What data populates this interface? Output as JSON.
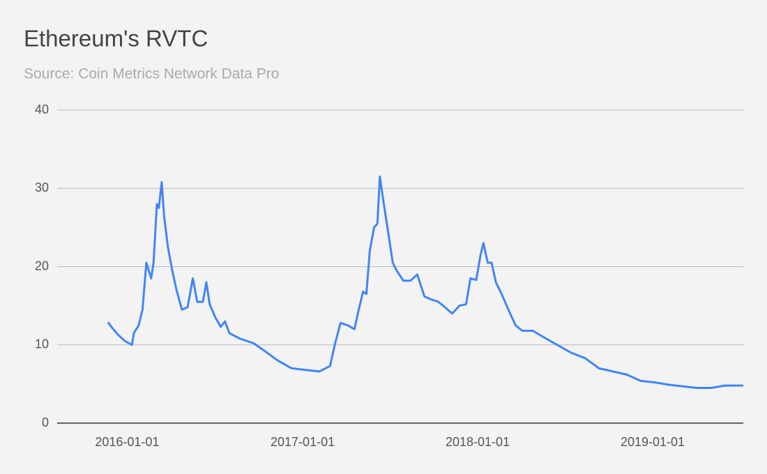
{
  "chart_data": {
    "type": "line",
    "title": "Ethereum's RVTC",
    "subtitle": "Source: Coin Metrics Network Data Pro",
    "x": [
      "2015-11-22",
      "2015-11-29",
      "2015-12-13",
      "2015-12-27",
      "2016-01-11",
      "2016-01-15",
      "2016-01-25",
      "2016-02-02",
      "2016-02-10",
      "2016-02-20",
      "2016-02-25",
      "2016-03-03",
      "2016-03-07",
      "2016-03-13",
      "2016-03-18",
      "2016-03-26",
      "2016-04-04",
      "2016-04-13",
      "2016-04-24",
      "2016-05-06",
      "2016-05-17",
      "2016-05-26",
      "2016-06-07",
      "2016-06-14",
      "2016-06-21",
      "2016-07-03",
      "2016-07-14",
      "2016-07-23",
      "2016-08-01",
      "2016-08-23",
      "2016-09-21",
      "2016-10-12",
      "2016-11-10",
      "2016-12-09",
      "2017-01-07",
      "2017-02-05",
      "2017-02-27",
      "2017-03-09",
      "2017-03-21",
      "2017-04-05",
      "2017-04-19",
      "2017-04-28",
      "2017-05-07",
      "2017-05-14",
      "2017-05-21",
      "2017-05-30",
      "2017-06-06",
      "2017-06-11",
      "2017-06-18",
      "2017-06-28",
      "2017-07-08",
      "2017-07-16",
      "2017-07-30",
      "2017-08-14",
      "2017-08-28",
      "2017-09-12",
      "2017-09-26",
      "2017-10-11",
      "2017-10-25",
      "2017-11-09",
      "2017-11-24",
      "2017-12-08",
      "2017-12-17",
      "2017-12-29",
      "2018-01-07",
      "2018-01-13",
      "2018-01-22",
      "2018-01-30",
      "2018-02-08",
      "2018-02-20",
      "2018-03-06",
      "2018-03-21",
      "2018-04-04",
      "2018-04-26",
      "2018-05-18",
      "2018-06-16",
      "2018-07-15",
      "2018-08-13",
      "2018-09-11",
      "2018-10-10",
      "2018-11-08",
      "2018-12-07",
      "2019-01-06",
      "2019-02-04",
      "2019-03-05",
      "2019-04-03",
      "2019-05-03",
      "2019-06-01",
      "2019-07-09"
    ],
    "series": [
      {
        "name": "RVTC",
        "color": "#4285f4",
        "values": [
          12.9,
          12.3,
          11.3,
          10.5,
          10.0,
          11.5,
          12.5,
          14.5,
          20.5,
          18.5,
          20.5,
          28.0,
          27.5,
          30.8,
          26.5,
          22.5,
          19.5,
          17.0,
          14.5,
          14.8,
          18.5,
          15.5,
          15.5,
          18.0,
          15.2,
          13.5,
          12.3,
          13.0,
          11.5,
          10.8,
          10.2,
          9.3,
          8.0,
          7.0,
          6.8,
          6.6,
          7.3,
          10.0,
          12.8,
          12.5,
          12.0,
          14.5,
          16.8,
          16.5,
          22.0,
          25.0,
          25.5,
          31.5,
          28.5,
          24.5,
          20.5,
          19.5,
          18.2,
          18.2,
          19.0,
          16.2,
          15.8,
          15.5,
          14.8,
          14.0,
          15.0,
          15.2,
          18.5,
          18.3,
          21.5,
          23.0,
          20.5,
          20.5,
          18.0,
          16.5,
          14.5,
          12.5,
          11.8,
          11.8,
          11.0,
          10.0,
          9.0,
          8.3,
          7.0,
          6.6,
          6.2,
          5.4,
          5.2,
          4.9,
          4.7,
          4.5,
          4.5,
          4.8,
          4.8
        ]
      }
    ],
    "xlim": [
      "2015-08-08",
      "2019-07-09"
    ],
    "xticks": [
      "2016-01-01",
      "2017-01-01",
      "2018-01-01",
      "2019-01-01"
    ],
    "ylim": [
      0,
      40
    ],
    "yticks": [
      0,
      10,
      20,
      30,
      40
    ],
    "grid": true
  }
}
